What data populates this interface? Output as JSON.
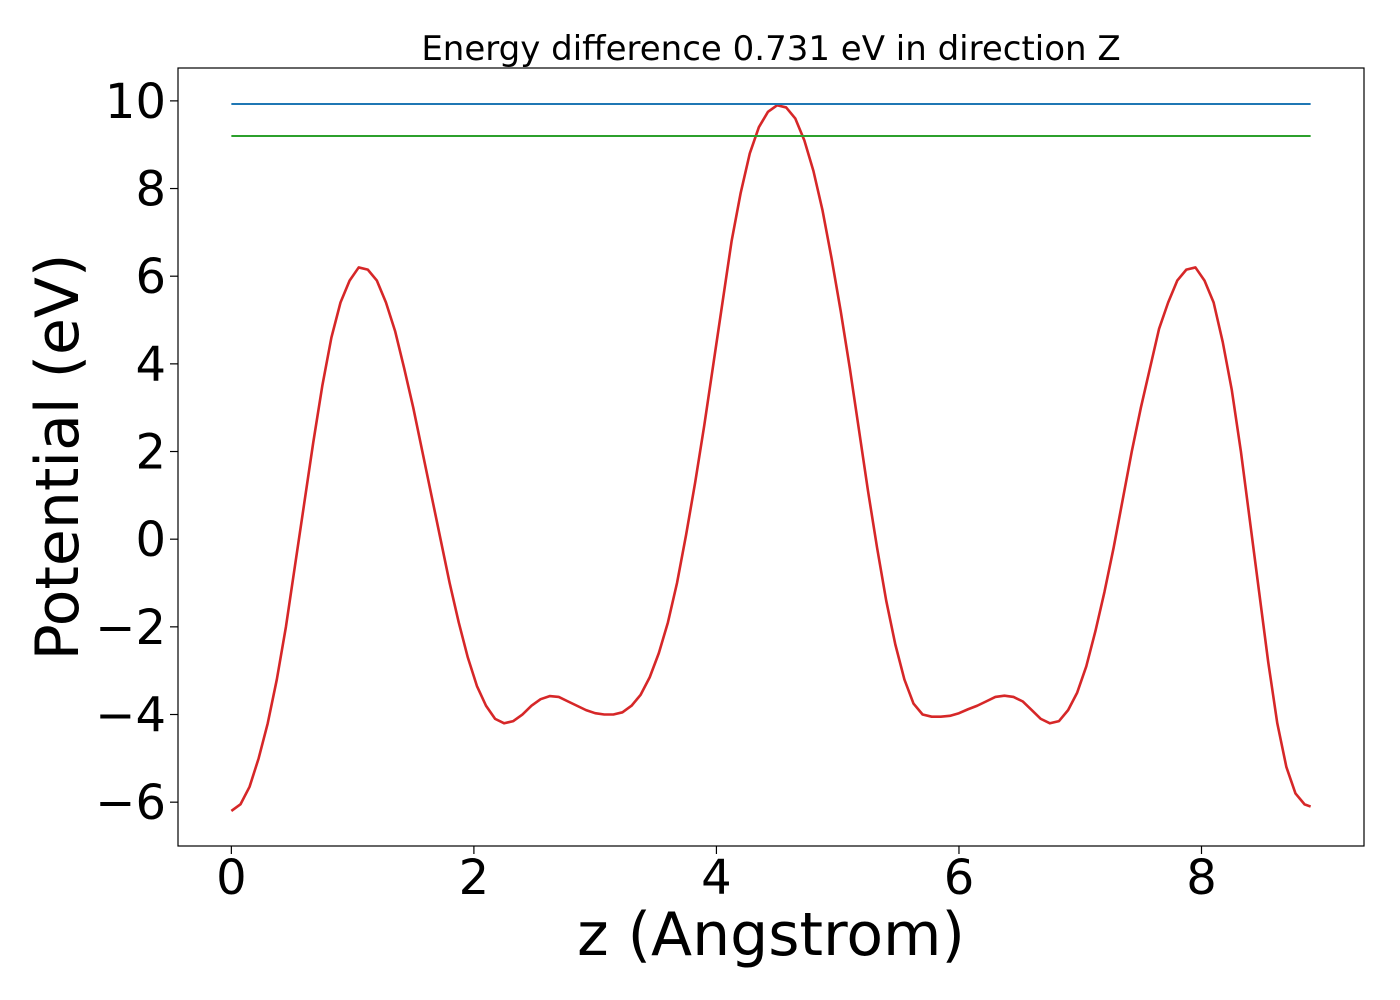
{
  "chart_data": {
    "type": "line",
    "title": "Energy difference 0.731 eV in direction Z",
    "xlabel": "z (Angstrom)",
    "ylabel": "Potential (eV)",
    "xlim": [
      -0.44,
      9.34
    ],
    "ylim": [
      -7.0,
      10.75
    ],
    "xticks": [
      0,
      2,
      4,
      6,
      8
    ],
    "yticks": [
      -6,
      -4,
      -2,
      0,
      2,
      4,
      6,
      8,
      10
    ],
    "xtick_labels": [
      "0",
      "2",
      "4",
      "6",
      "8"
    ],
    "ytick_labels": [
      "−6",
      "−4",
      "−2",
      "0",
      "2",
      "4",
      "6",
      "8",
      "10"
    ],
    "grid": false,
    "legend": "none",
    "series": [
      {
        "color": "#d62728",
        "x": [
          0.0,
          0.075,
          0.15,
          0.225,
          0.3,
          0.375,
          0.45,
          0.525,
          0.6,
          0.675,
          0.75,
          0.825,
          0.9,
          0.975,
          1.05,
          1.125,
          1.2,
          1.275,
          1.35,
          1.425,
          1.5,
          1.575,
          1.65,
          1.725,
          1.8,
          1.875,
          1.95,
          2.025,
          2.1,
          2.175,
          2.25,
          2.325,
          2.4,
          2.475,
          2.55,
          2.625,
          2.7,
          2.775,
          2.85,
          2.925,
          3.0,
          3.075,
          3.15,
          3.225,
          3.3,
          3.375,
          3.45,
          3.525,
          3.6,
          3.675,
          3.75,
          3.825,
          3.9,
          3.975,
          4.05,
          4.125,
          4.2,
          4.275,
          4.35,
          4.425,
          4.5,
          4.575,
          4.65,
          4.725,
          4.8,
          4.875,
          4.95,
          5.025,
          5.1,
          5.175,
          5.25,
          5.325,
          5.4,
          5.475,
          5.55,
          5.625,
          5.7,
          5.775,
          5.85,
          5.925,
          6.0,
          6.075,
          6.15,
          6.225,
          6.3,
          6.375,
          6.45,
          6.525,
          6.6,
          6.675,
          6.75,
          6.825,
          6.9,
          6.975,
          7.05,
          7.125,
          7.2,
          7.275,
          7.35,
          7.425,
          7.5,
          7.575,
          7.65,
          7.725,
          7.8,
          7.875,
          7.95,
          8.025,
          8.1,
          8.175,
          8.25,
          8.325,
          8.4,
          8.475,
          8.55,
          8.625,
          8.7,
          8.775,
          8.85,
          8.9
        ],
        "values": [
          -6.2,
          -6.05,
          -5.65,
          -5.0,
          -4.2,
          -3.2,
          -2.0,
          -0.6,
          0.8,
          2.2,
          3.5,
          4.6,
          5.4,
          5.9,
          6.2,
          6.15,
          5.9,
          5.4,
          4.75,
          3.9,
          3.0,
          2.0,
          1.0,
          0.0,
          -1.0,
          -1.9,
          -2.7,
          -3.35,
          -3.8,
          -4.1,
          -4.2,
          -4.15,
          -4.0,
          -3.8,
          -3.65,
          -3.58,
          -3.6,
          -3.7,
          -3.8,
          -3.9,
          -3.97,
          -4.0,
          -4.0,
          -3.95,
          -3.8,
          -3.55,
          -3.15,
          -2.6,
          -1.9,
          -1.0,
          0.1,
          1.3,
          2.6,
          4.0,
          5.4,
          6.8,
          7.9,
          8.8,
          9.4,
          9.75,
          9.9,
          9.85,
          9.6,
          9.1,
          8.4,
          7.5,
          6.4,
          5.2,
          3.9,
          2.5,
          1.1,
          -0.2,
          -1.4,
          -2.4,
          -3.2,
          -3.75,
          -4.0,
          -4.05,
          -4.05,
          -4.03,
          -3.97,
          -3.88,
          -3.8,
          -3.7,
          -3.6,
          -3.57,
          -3.6,
          -3.7,
          -3.9,
          -4.1,
          -4.2,
          -4.15,
          -3.9,
          -3.5,
          -2.9,
          -2.1,
          -1.2,
          -0.2,
          0.9,
          2.0,
          3.0,
          3.9,
          4.8,
          5.4,
          5.9,
          6.15,
          6.2,
          5.9,
          5.4,
          4.5,
          3.4,
          2.0,
          0.4,
          -1.2,
          -2.8,
          -4.2,
          -5.2,
          -5.8,
          -6.05,
          -6.1
        ]
      },
      {
        "color": "#1f77b4",
        "x": [
          0.0,
          8.9
        ],
        "values": [
          9.93,
          9.93
        ]
      },
      {
        "color": "#2ca02c",
        "x": [
          0.0,
          8.9
        ],
        "values": [
          9.2,
          9.2
        ]
      }
    ]
  }
}
